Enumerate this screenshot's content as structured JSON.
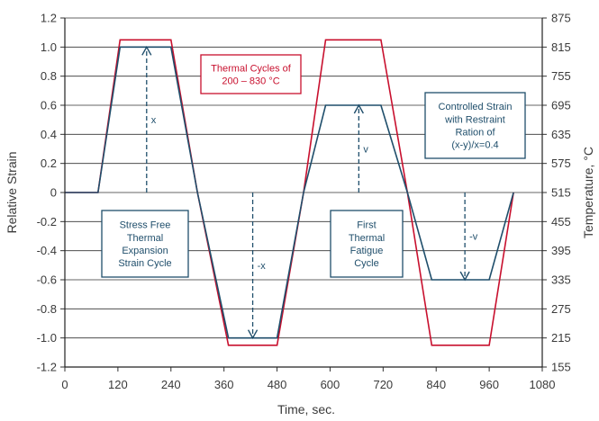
{
  "chart_data": {
    "type": "line",
    "xlabel": "Time, sec.",
    "ylabel": "Relative Strain",
    "y2label": "Temperature, °C",
    "xlim": [
      0,
      1080
    ],
    "ylim": [
      -1.2,
      1.2
    ],
    "y2lim": [
      155,
      875
    ],
    "x_ticks": [
      "0",
      "120",
      "240",
      "360",
      "480",
      "600",
      "720",
      "840",
      "960",
      "1080"
    ],
    "y_ticks": [
      "1.2",
      "1.0",
      "0.8",
      "0.6",
      "0.4",
      "0.2",
      "0",
      "-0.2",
      "-0.4",
      "-0.6",
      "-0.8",
      "-1.0",
      "-1.2"
    ],
    "y2_ticks": [
      "875",
      "815",
      "755",
      "695",
      "635",
      "575",
      "515",
      "455",
      "395",
      "335",
      "275",
      "215",
      "155"
    ],
    "grid": true,
    "series": [
      {
        "color": "#c8102e",
        "axis": "right",
        "x": [
          0,
          75,
          125,
          240,
          300,
          370,
          480,
          540,
          590,
          715,
          775,
          830,
          960,
          1015
        ],
        "y": [
          515,
          515,
          830,
          830,
          515,
          200,
          200,
          515,
          830,
          830,
          515,
          200,
          200,
          515
        ]
      },
      {
        "color": "#1f4e6b",
        "axis": "left",
        "x": [
          0,
          75,
          125,
          240,
          300,
          370,
          480,
          540,
          590,
          715,
          775,
          830,
          960,
          1015
        ],
        "y": [
          0,
          0,
          1.0,
          1.0,
          0,
          -1.0,
          -1.0,
          0,
          0.6,
          0.6,
          0,
          -0.6,
          -0.6,
          0
        ]
      }
    ],
    "annotations": [
      {
        "id": "thermal",
        "lines": [
          "Thermal Cycles of",
          "200 – 830 °C"
        ],
        "color": "#c8102e"
      },
      {
        "id": "controlled",
        "lines": [
          "Controlled Strain",
          "with Restraint",
          "Ration of",
          "(x-y)/x=0.4"
        ],
        "color": "#1f4e6b"
      },
      {
        "id": "stressfree",
        "lines": [
          "Stress Free",
          "Thermal",
          "Expansion",
          "Strain Cycle"
        ],
        "color": "#1f4e6b"
      },
      {
        "id": "firstfatigue",
        "lines": [
          "First",
          "Thermal",
          "Fatigue",
          "Cycle"
        ],
        "color": "#1f4e6b"
      }
    ],
    "arrows": [
      {
        "label": "x",
        "x": 185,
        "y1": 0,
        "y2": 1.0
      },
      {
        "label": "-x",
        "x": 425,
        "y1": 0,
        "y2": -1.0
      },
      {
        "label": "v",
        "x": 665,
        "y1": 0,
        "y2": 0.6
      },
      {
        "label": "-v",
        "x": 905,
        "y1": 0,
        "y2": -0.6
      }
    ]
  }
}
